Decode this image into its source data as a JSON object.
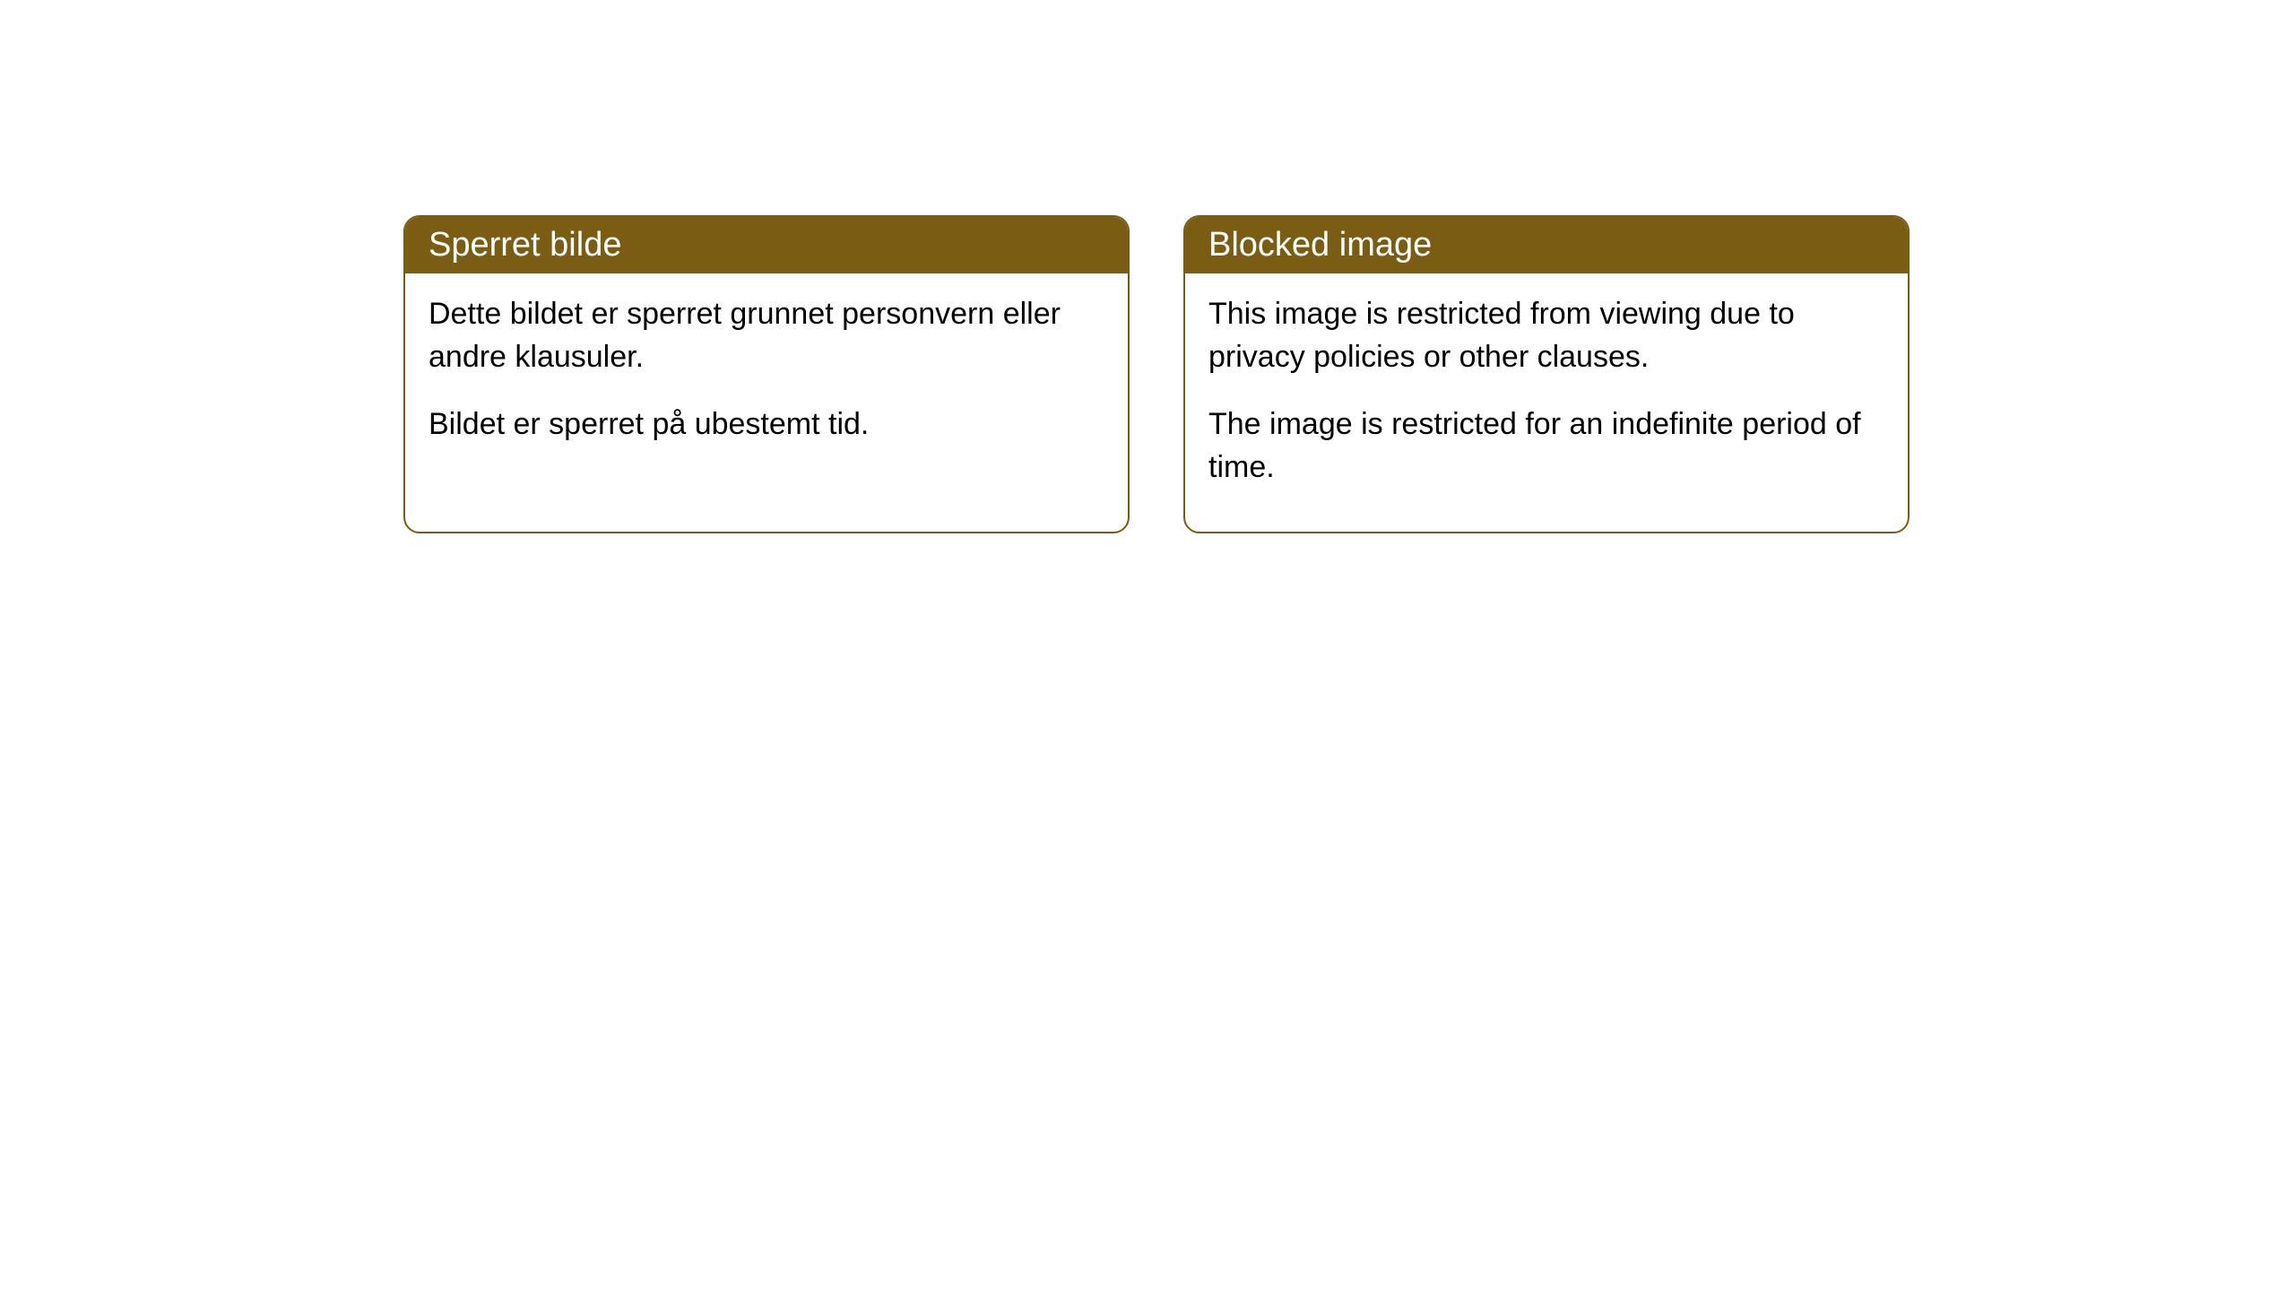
{
  "cards": [
    {
      "title": "Sperret bilde",
      "paragraph1": "Dette bildet er sperret grunnet personvern eller andre klausuler.",
      "paragraph2": "Bildet er sperret på ubestemt tid."
    },
    {
      "title": "Blocked image",
      "paragraph1": "This image is restricted from viewing due to privacy policies or other clauses.",
      "paragraph2": "The image is restricted for an indefinite period of time."
    }
  ],
  "styling": {
    "header_bg_color": "#7a5d13",
    "header_text_color": "#ffffff",
    "border_color": "#7a5d13",
    "body_text_color": "#000000",
    "background_color": "#ffffff",
    "border_radius": 18,
    "title_fontsize": 38,
    "body_fontsize": 34
  }
}
